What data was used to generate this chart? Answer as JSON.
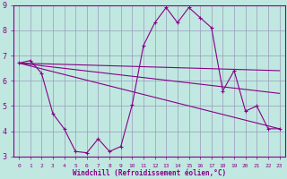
{
  "background_color": "#c0e8e0",
  "grid_color": "#9999bb",
  "line_color": "#880088",
  "xlabel": "Windchill (Refroidissement éolien,°C)",
  "xlim": [
    -0.5,
    23.5
  ],
  "ylim": [
    3,
    9
  ],
  "xticks": [
    0,
    1,
    2,
    3,
    4,
    5,
    6,
    7,
    8,
    9,
    10,
    11,
    12,
    13,
    14,
    15,
    16,
    17,
    18,
    19,
    20,
    21,
    22,
    23
  ],
  "yticks": [
    3,
    4,
    5,
    6,
    7,
    8,
    9
  ],
  "line1_x": [
    0,
    1,
    2,
    3,
    4,
    5,
    6,
    7,
    8,
    9,
    10,
    11,
    12,
    13,
    14,
    15,
    16,
    17,
    18,
    19,
    20,
    21,
    22,
    23
  ],
  "line1_y": [
    6.7,
    6.8,
    6.3,
    4.7,
    4.1,
    3.2,
    3.15,
    3.7,
    3.2,
    3.4,
    5.05,
    7.4,
    8.3,
    8.9,
    8.3,
    8.9,
    8.5,
    8.1,
    5.6,
    6.4,
    4.8,
    5.0,
    4.1,
    4.1
  ],
  "line2_x": [
    0,
    23
  ],
  "line2_y": [
    6.7,
    6.4
  ],
  "line3_x": [
    0,
    23
  ],
  "line3_y": [
    6.7,
    4.1
  ],
  "line4_x": [
    0,
    23
  ],
  "line4_y": [
    6.7,
    5.5
  ]
}
